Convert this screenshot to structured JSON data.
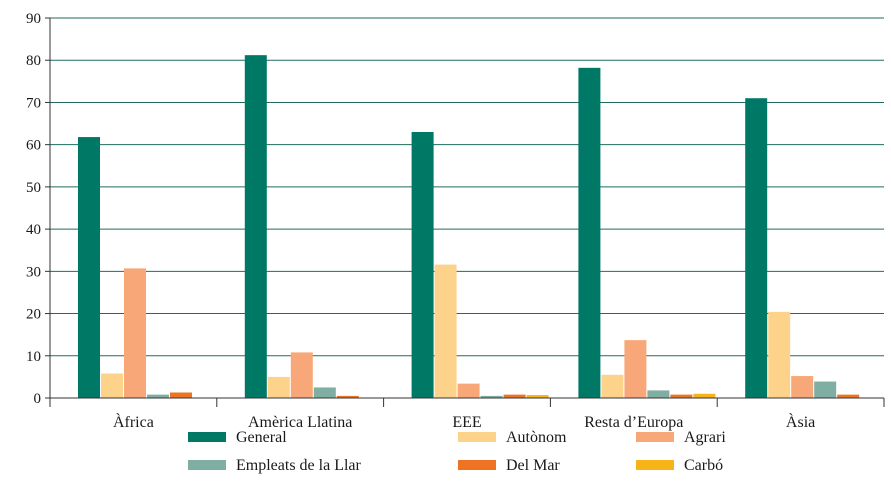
{
  "chart_data": {
    "type": "bar",
    "categories": [
      "Àfrica",
      "Amèrica Llatina",
      "EEE",
      "Resta d’Europa",
      "Àsia"
    ],
    "series": [
      {
        "name": "General",
        "color": "#007866",
        "values": [
          61.8,
          81.2,
          63.0,
          78.2,
          71.0
        ]
      },
      {
        "name": "Autònom",
        "color": "#FDD38B",
        "values": [
          5.8,
          5.0,
          31.6,
          5.5,
          20.4
        ]
      },
      {
        "name": "Agrari",
        "color": "#F8A878",
        "values": [
          30.7,
          10.8,
          3.4,
          13.7,
          5.2
        ]
      },
      {
        "name": "Empleats de la Llar",
        "color": "#7FAFA2",
        "values": [
          0.8,
          2.5,
          0.5,
          1.8,
          3.9
        ]
      },
      {
        "name": "Del Mar",
        "color": "#EE7322",
        "values": [
          1.3,
          0.5,
          0.8,
          0.8,
          0.8
        ]
      },
      {
        "name": "Carbó",
        "color": "#F6B418",
        "values": [
          0.0,
          0.0,
          0.7,
          1.0,
          0.0
        ]
      }
    ],
    "ylim": [
      0,
      90
    ],
    "yticks": [
      0,
      10,
      20,
      30,
      40,
      50,
      60,
      70,
      80,
      90
    ],
    "grid": true,
    "legend_position": "bottom",
    "title": "",
    "xlabel": "",
    "ylabel": ""
  }
}
